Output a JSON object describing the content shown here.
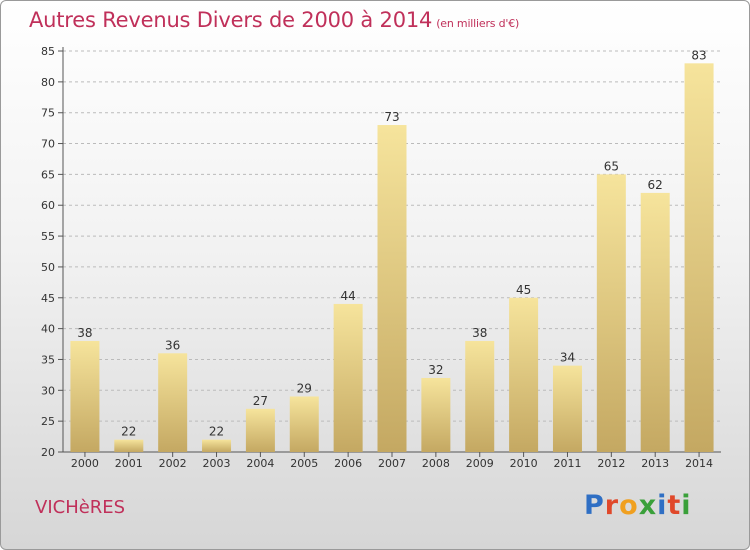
{
  "header": {
    "title": "Autres Revenus Divers de 2000 à 2014",
    "unit": "(en milliers d'€)"
  },
  "footer": {
    "place": "VICHèRES",
    "brand": {
      "text": "Proxiti",
      "letters": [
        {
          "ch": "P",
          "color": "#2f6fc4"
        },
        {
          "ch": "r",
          "color": "#e0482a"
        },
        {
          "ch": "o",
          "color": "#f0a020"
        },
        {
          "ch": "x",
          "color": "#3aa03a"
        },
        {
          "ch": "i",
          "color": "#2f6fc4"
        },
        {
          "ch": "t",
          "color": "#e0482a"
        },
        {
          "ch": "i",
          "color": "#3aa03a"
        }
      ]
    }
  },
  "colors": {
    "title": "#c0305a",
    "bar_light": "#f6e49c",
    "bar_dark": "#c4a862",
    "axis": "#555555",
    "grid": "#bbbbbb"
  },
  "chart_data": {
    "type": "bar",
    "title": "Autres Revenus Divers de 2000 à 2014",
    "subtitle": "(en milliers d'€)",
    "categories": [
      "2000",
      "2001",
      "2002",
      "2003",
      "2004",
      "2005",
      "2006",
      "2007",
      "2008",
      "2009",
      "2010",
      "2011",
      "2012",
      "2013",
      "2014"
    ],
    "values": [
      38,
      22,
      36,
      22,
      27,
      29,
      44,
      73,
      32,
      38,
      45,
      34,
      65,
      62,
      83
    ],
    "ylim": [
      20,
      85
    ],
    "yticks": [
      20,
      25,
      30,
      35,
      40,
      45,
      50,
      55,
      60,
      65,
      70,
      75,
      80,
      85
    ],
    "grid": true,
    "data_labels": true
  }
}
